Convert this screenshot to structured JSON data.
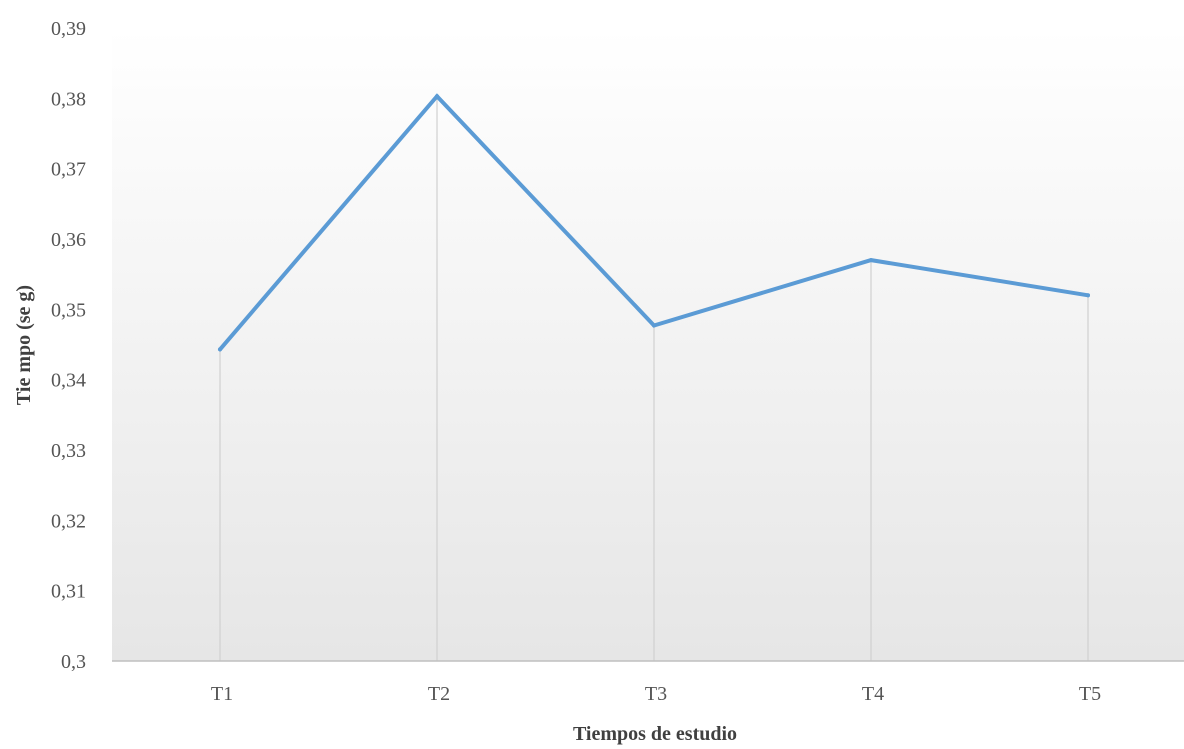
{
  "chart_data": {
    "type": "line",
    "categories": [
      "T1",
      "T2",
      "T3",
      "T4",
      "T5"
    ],
    "series": [
      {
        "values": [
          0.3443,
          0.3803,
          0.3477,
          0.357,
          0.352
        ],
        "color": "#5b9bd5"
      }
    ],
    "xlabel": "Tiempos de estudio",
    "ylabel": "Tie mpo (se g)",
    "ylim": [
      0.3,
      0.39
    ],
    "yticks": [
      "0,3",
      "0,31",
      "0,32",
      "0,33",
      "0,34",
      "0,35",
      "0,36",
      "0,37",
      "0,38",
      "0,39"
    ],
    "grid": "vertical drop lines at categories",
    "legend": "none"
  }
}
